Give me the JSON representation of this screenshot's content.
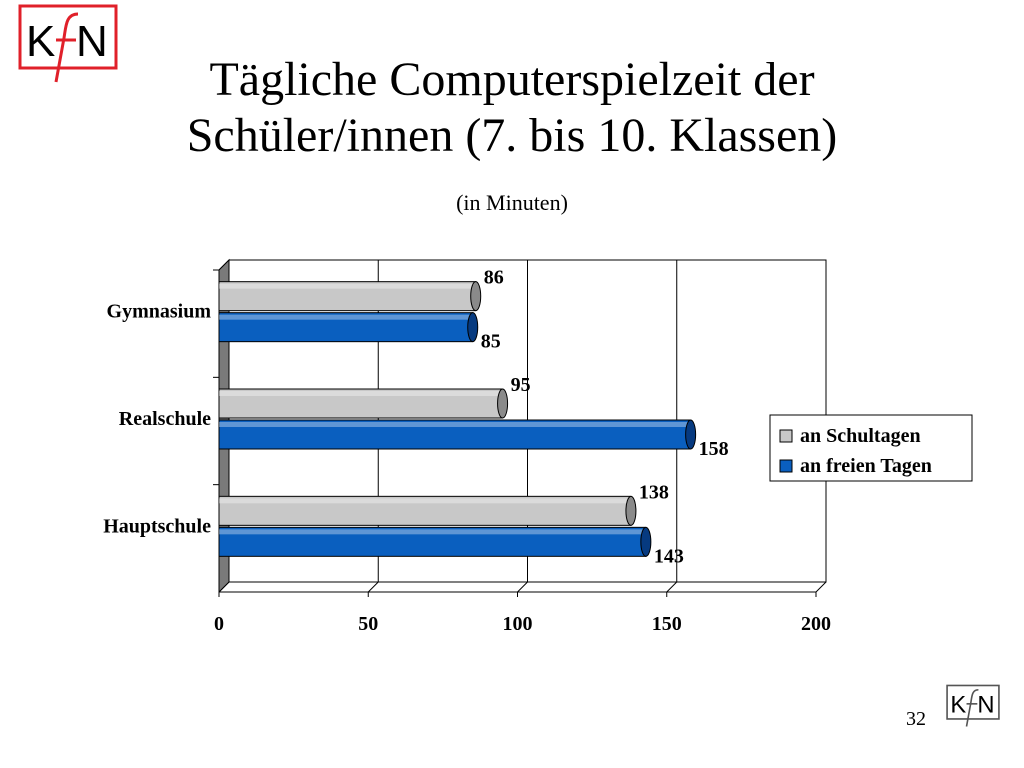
{
  "slide": {
    "title_line1": "Tägliche Computerspielzeit der",
    "title_line2": "Schüler/innen (7. bis 10. Klassen)",
    "subtitle": "(in Minuten)",
    "page_number": "32",
    "logo_text": "KfN"
  },
  "colors": {
    "series_gray": "#c8c8c8",
    "series_gray_dark": "#8a8a8a",
    "series_blue": "#0a5fbf",
    "series_blue_dark": "#063a80",
    "logo_red": "#e0202a"
  },
  "chart_data": {
    "type": "bar",
    "orientation": "horizontal",
    "categories": [
      "Gymnasium",
      "Realschule",
      "Hauptschule"
    ],
    "series": [
      {
        "name": "an Schultagen",
        "values": [
          86,
          95,
          138
        ]
      },
      {
        "name": "an freien Tagen",
        "values": [
          85,
          158,
          143
        ]
      }
    ],
    "xlim": [
      0,
      200
    ],
    "xticks": [
      "0",
      "50",
      "100",
      "150",
      "200"
    ],
    "grid": true,
    "legend": "right"
  }
}
